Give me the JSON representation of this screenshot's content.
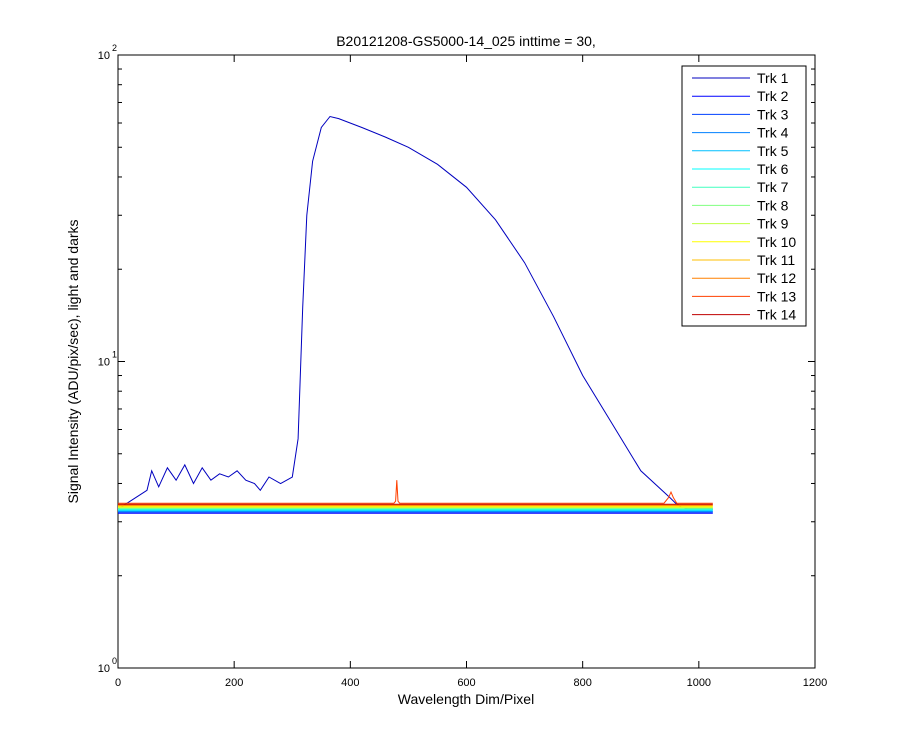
{
  "figure_background": "#ffffff",
  "chart_data": {
    "type": "line",
    "title": "B20121208-GS5000-14_025 inttime = 30,",
    "xlabel": "Wavelength Dim/Pixel",
    "ylabel": "Signal Intensity (ADU/pix/sec), light and darks",
    "xlim": [
      0,
      1200
    ],
    "ylim": [
      1,
      100
    ],
    "yscale": "log",
    "x_ticks": [
      "0",
      "200",
      "400",
      "600",
      "800",
      "1000",
      "1200"
    ],
    "y_ticks": [
      {
        "base": "10",
        "exp": "0"
      },
      {
        "base": "10",
        "exp": "1"
      },
      {
        "base": "10",
        "exp": "2"
      }
    ],
    "grid": false,
    "legend_position": "top-right",
    "series": [
      {
        "name": "Trk 1",
        "color": "#0000bf",
        "x": [
          0,
          50,
          58,
          70,
          85,
          100,
          115,
          130,
          145,
          160,
          175,
          190,
          205,
          220,
          235,
          245,
          260,
          280,
          300,
          310,
          318,
          325,
          335,
          350,
          365,
          380,
          420,
          460,
          500,
          550,
          600,
          650,
          700,
          750,
          800,
          850,
          900,
          950,
          960,
          970,
          980,
          1000,
          1024
        ],
        "y": [
          3.3,
          3.8,
          4.4,
          3.9,
          4.5,
          4.1,
          4.6,
          4.0,
          4.5,
          4.1,
          4.3,
          4.2,
          4.4,
          4.1,
          4.0,
          3.8,
          4.2,
          4.0,
          4.2,
          5.6,
          15,
          30,
          45,
          58,
          63,
          62,
          58,
          54,
          50,
          44,
          37,
          29,
          21,
          14,
          9,
          6.3,
          4.4,
          3.6,
          3.45,
          3.35,
          3.3,
          3.3,
          3.3
        ]
      },
      {
        "name": "Trk 2",
        "color": "#0000ff",
        "x": [
          0,
          1024
        ],
        "y": [
          3.2,
          3.2
        ]
      },
      {
        "name": "Trk 3",
        "color": "#0040ff",
        "x": [
          0,
          1024
        ],
        "y": [
          3.22,
          3.22
        ]
      },
      {
        "name": "Trk 4",
        "color": "#0080ff",
        "x": [
          0,
          1024
        ],
        "y": [
          3.24,
          3.24
        ]
      },
      {
        "name": "Trk 5",
        "color": "#00bfff",
        "x": [
          0,
          1024
        ],
        "y": [
          3.26,
          3.26
        ]
      },
      {
        "name": "Trk 6",
        "color": "#00ffff",
        "x": [
          0,
          1024
        ],
        "y": [
          3.28,
          3.28
        ]
      },
      {
        "name": "Trk 7",
        "color": "#40ffbf",
        "x": [
          0,
          1024
        ],
        "y": [
          3.3,
          3.3
        ]
      },
      {
        "name": "Trk 8",
        "color": "#80ff80",
        "x": [
          0,
          1024
        ],
        "y": [
          3.32,
          3.32
        ]
      },
      {
        "name": "Trk 9",
        "color": "#bfff40",
        "x": [
          0,
          1024
        ],
        "y": [
          3.34,
          3.34
        ]
      },
      {
        "name": "Trk 10",
        "color": "#ffff00",
        "x": [
          0,
          1024
        ],
        "y": [
          3.36,
          3.36
        ]
      },
      {
        "name": "Trk 11",
        "color": "#ffbf00",
        "x": [
          0,
          1024
        ],
        "y": [
          3.38,
          3.38
        ]
      },
      {
        "name": "Trk 12",
        "color": "#ff8000",
        "x": [
          0,
          1024
        ],
        "y": [
          3.4,
          3.4
        ]
      },
      {
        "name": "Trk 13",
        "color": "#ff4000",
        "x": [
          0,
          475,
          478,
          480,
          482,
          485,
          940,
          948,
          952,
          956,
          962,
          1024
        ],
        "y": [
          3.45,
          3.45,
          3.5,
          4.1,
          3.5,
          3.45,
          3.45,
          3.6,
          3.75,
          3.6,
          3.45,
          3.45
        ]
      },
      {
        "name": "Trk 14",
        "color": "#bf0000",
        "x": [
          0,
          1024
        ],
        "y": [
          3.42,
          3.42
        ]
      }
    ]
  }
}
